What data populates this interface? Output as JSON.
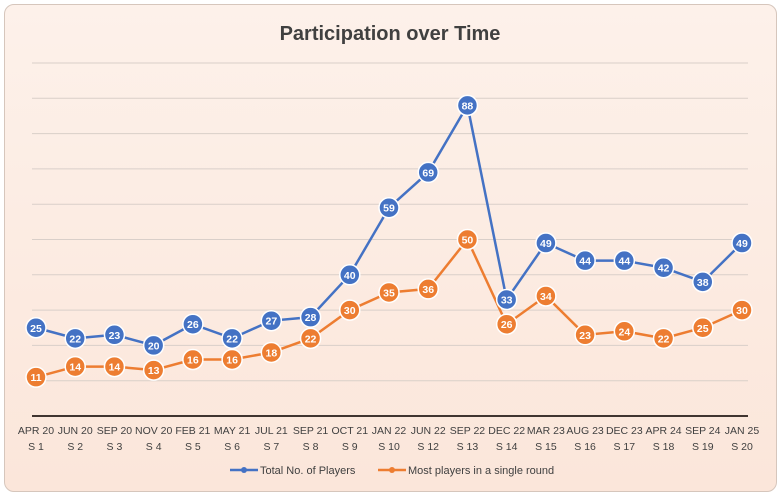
{
  "chart_data": {
    "type": "line",
    "title": "Participation over Time",
    "xlabel": "",
    "ylabel": "",
    "ylim": [
      0,
      100
    ],
    "grid": true,
    "legend_position": "bottom",
    "categories": [
      [
        "APR 20",
        "S 1"
      ],
      [
        "JUN 20",
        "S 2"
      ],
      [
        "SEP 20",
        "S 3"
      ],
      [
        "NOV 20",
        "S 4"
      ],
      [
        "FEB 21",
        "S 5"
      ],
      [
        "MAY 21",
        "S 6"
      ],
      [
        "JUL 21",
        "S 7"
      ],
      [
        "SEP 21",
        "S 8"
      ],
      [
        "OCT 21",
        "S 9"
      ],
      [
        "JAN 22",
        "S 10"
      ],
      [
        "JUN 22",
        "S 12"
      ],
      [
        "SEP 22",
        "S 13"
      ],
      [
        "DEC 22",
        "S 14"
      ],
      [
        "MAR 23",
        "S 15"
      ],
      [
        "AUG 23",
        "S 16"
      ],
      [
        "DEC 23",
        "S 17"
      ],
      [
        "APR 24",
        "S 18"
      ],
      [
        "SEP 24",
        "S 19"
      ],
      [
        "JAN 25",
        "S 20"
      ]
    ],
    "series": [
      {
        "name": "Total No. of Players",
        "color": "#4472c4",
        "values": [
          25,
          22,
          23,
          20,
          26,
          22,
          27,
          28,
          40,
          59,
          69,
          88,
          33,
          49,
          44,
          44,
          42,
          38,
          49
        ]
      },
      {
        "name": "Most players in a single round",
        "color": "#ed7d31",
        "values": [
          11,
          14,
          14,
          13,
          16,
          16,
          18,
          22,
          30,
          35,
          36,
          50,
          26,
          34,
          23,
          24,
          22,
          25,
          30
        ]
      }
    ]
  }
}
